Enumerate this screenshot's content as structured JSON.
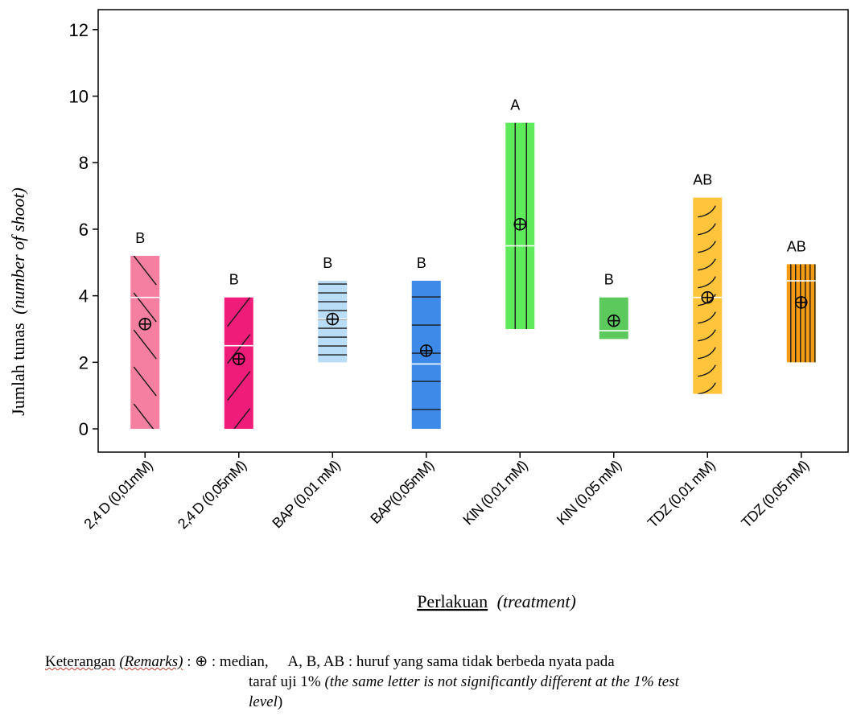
{
  "chart_data": {
    "type": "box",
    "ylabel": "Jumlah tunas",
    "ylabel_italic": "(number of shoot)",
    "xlabel": "Perlakuan",
    "xlabel_italic": "(treatment)",
    "ylim": [
      -0.7,
      12.6
    ],
    "yticks": [
      0,
      2,
      4,
      6,
      8,
      10,
      12
    ],
    "grid": false,
    "categories": [
      "2,4 D (0,01mM)",
      "2,4 D (0,05mM)",
      "BAP (0,01 mM)",
      "BAP(0,05mM)",
      "KIN (0,01 mM)",
      "KIN (0,05 mM)",
      "TDZ (0,01 mM)",
      "TDZ (0,05 mM)"
    ],
    "boxes": [
      {
        "category": "2,4 D (0,01mM)",
        "low": 0,
        "high": 5.2,
        "median": 3.95,
        "center": 3.15,
        "letter": "B",
        "color": "#f47fa0",
        "pattern": "diag-back"
      },
      {
        "category": "2,4 D (0,05mM)",
        "low": 0,
        "high": 3.95,
        "median": 2.5,
        "center": 2.1,
        "letter": "B",
        "color": "#f01c7a",
        "pattern": "diag-fwd"
      },
      {
        "category": "BAP (0,01 mM)",
        "low": 2.0,
        "high": 4.45,
        "median": 3.3,
        "center": 3.3,
        "letter": "B",
        "color": "#b9dcf7",
        "pattern": "hlines-dense"
      },
      {
        "category": "BAP(0,05mM)",
        "low": 0,
        "high": 4.45,
        "median": 1.95,
        "center": 2.35,
        "letter": "B",
        "color": "#3d8ae8",
        "pattern": "hlines-sparse"
      },
      {
        "category": "KIN (0,01 mM)",
        "low": 3.0,
        "high": 9.2,
        "median": 5.5,
        "center": 6.15,
        "letter": "A",
        "color": "#5fea5c",
        "pattern": "vlines"
      },
      {
        "category": "KIN (0,05 mM)",
        "low": 2.7,
        "high": 3.95,
        "median": 2.95,
        "center": 3.25,
        "letter": "B",
        "color": "#5cc95c",
        "pattern": "none"
      },
      {
        "category": "TDZ (0,01 mM)",
        "low": 1.05,
        "high": 6.95,
        "median": 3.95,
        "center": 3.95,
        "letter": "AB",
        "color": "#fdc43c",
        "pattern": "arcs"
      },
      {
        "category": "TDZ (0,05 mM)",
        "low": 2.0,
        "high": 4.95,
        "median": 4.45,
        "center": 3.8,
        "letter": "AB",
        "color": "#f59a14",
        "pattern": "vlines-dense"
      }
    ]
  },
  "remarks": {
    "label": "Keterangan",
    "label_italic": "(Remarks)",
    "sep": " : ",
    "median_symbol": "⊕",
    "median_text": " :  median,",
    "letters": "A, B, AB",
    "letters_text": " : huruf yang sama tidak berbeda nyata pada",
    "line2": "taraf uji 1% ",
    "line2_italic": "(the same letter is not significantly different at the 1% test",
    "line3_italic": "level",
    "line3_close": ")"
  }
}
